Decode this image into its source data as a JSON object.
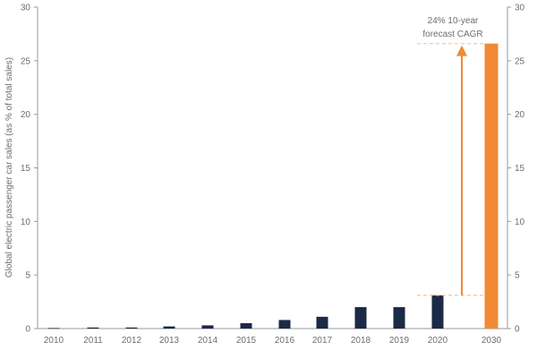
{
  "chart_data": {
    "type": "bar",
    "title": "",
    "xlabel": "",
    "ylabel": "Global electric passenger car sales (as % of total sales)",
    "categories": [
      "2010",
      "2011",
      "2012",
      "2013",
      "2014",
      "2015",
      "2016",
      "2017",
      "2018",
      "2019",
      "2020",
      "2030"
    ],
    "values": [
      0.05,
      0.1,
      0.1,
      0.2,
      0.3,
      0.5,
      0.8,
      1.1,
      2.0,
      2.0,
      3.1,
      26.6
    ],
    "ylim": [
      0,
      30
    ],
    "yticks": [
      "0",
      "5",
      "10",
      "15",
      "20",
      "25",
      "30"
    ],
    "grid": false,
    "legend": "none",
    "colors": {
      "historical": "#1b2a45",
      "forecast": "#f08a34",
      "dashed": "#f7c29a",
      "axis": "#9a9a9a",
      "text": "#6d6d6d"
    },
    "annotation": {
      "line1": "24% 10-year",
      "line2": "forecast CAGR"
    }
  }
}
